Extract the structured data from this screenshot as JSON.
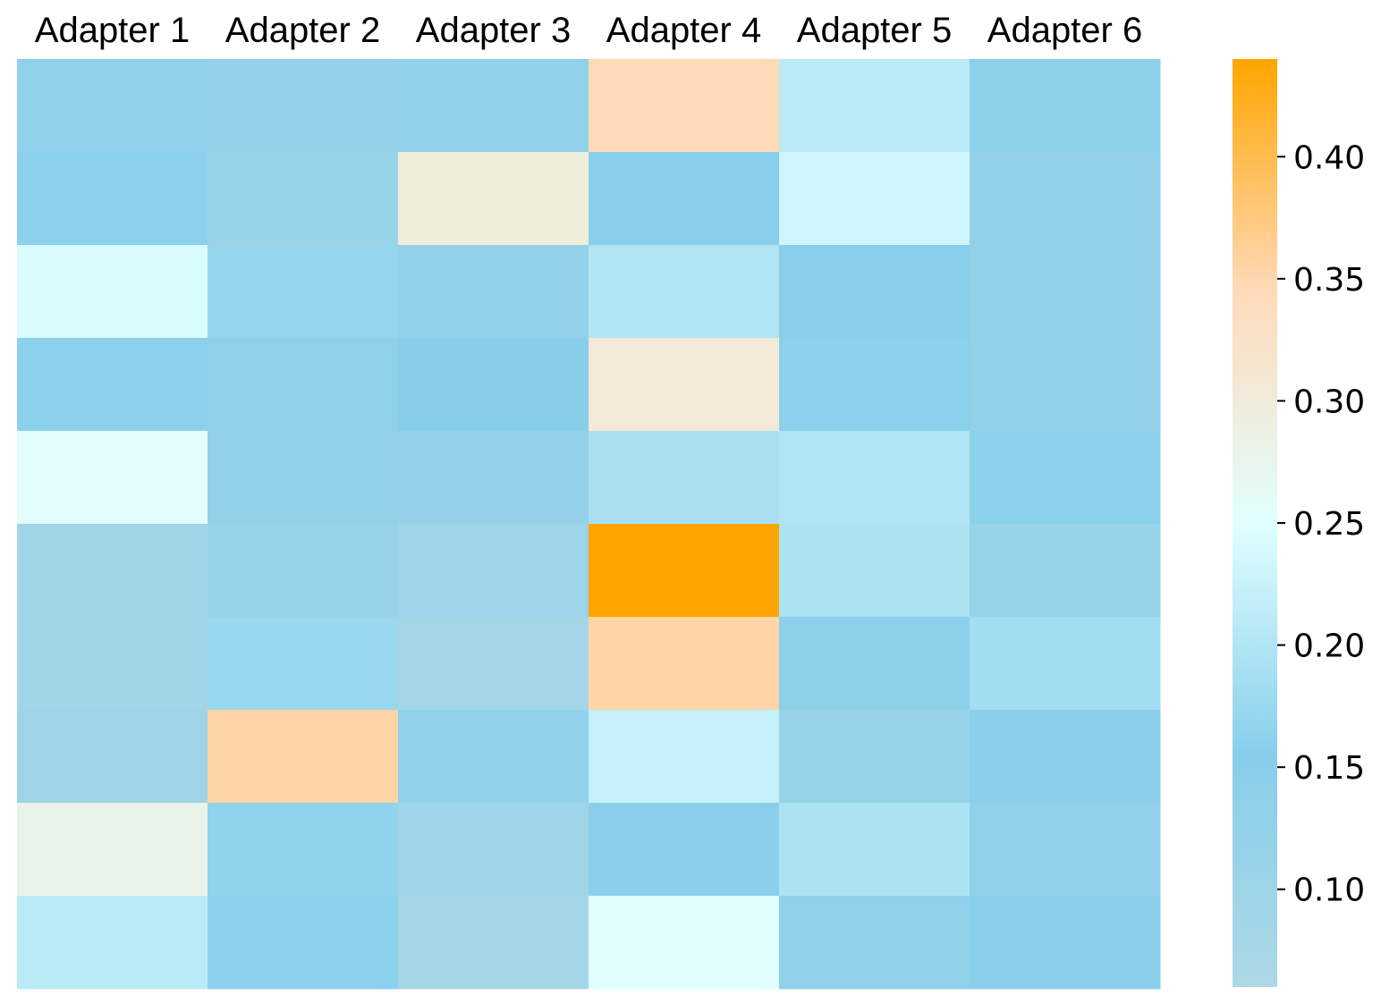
{
  "chart_data": {
    "type": "heatmap",
    "title": "",
    "xlabel": "",
    "ylabel": "",
    "columns": [
      "Adapter 1",
      "Adapter 2",
      "Adapter 3",
      "Adapter 4",
      "Adapter 5",
      "Adapter 6"
    ],
    "rows": 10,
    "values": [
      [
        0.135,
        0.12,
        0.13,
        0.345,
        0.21,
        0.14
      ],
      [
        0.16,
        0.11,
        0.3,
        0.15,
        0.23,
        0.125
      ],
      [
        0.245,
        0.17,
        0.125,
        0.2,
        0.15,
        0.125
      ],
      [
        0.16,
        0.135,
        0.155,
        0.305,
        0.16,
        0.125
      ],
      [
        0.255,
        0.125,
        0.12,
        0.19,
        0.2,
        0.16
      ],
      [
        0.09,
        0.115,
        0.1,
        0.44,
        0.195,
        0.11
      ],
      [
        0.09,
        0.175,
        0.08,
        0.355,
        0.14,
        0.185
      ],
      [
        0.095,
        0.355,
        0.13,
        0.22,
        0.115,
        0.145
      ],
      [
        0.28,
        0.165,
        0.095,
        0.145,
        0.195,
        0.13
      ],
      [
        0.21,
        0.16,
        0.08,
        0.25,
        0.135,
        0.15
      ]
    ],
    "colorbar": {
      "ticks": [
        "0.10",
        "0.15",
        "0.20",
        "0.25",
        "0.30",
        "0.35",
        "0.40"
      ],
      "tick_values": [
        0.1,
        0.15,
        0.2,
        0.25,
        0.3,
        0.35,
        0.4
      ],
      "range": [
        0.06,
        0.44
      ]
    },
    "colormap": [
      {
        "v": 0.0,
        "color": "#add8e6"
      },
      {
        "v": 0.25,
        "color": "#87ceeb"
      },
      {
        "v": 0.5,
        "color": "#e0ffff"
      },
      {
        "v": 0.75,
        "color": "#ffdab9"
      },
      {
        "v": 1.0,
        "color": "#ffa500"
      }
    ]
  }
}
